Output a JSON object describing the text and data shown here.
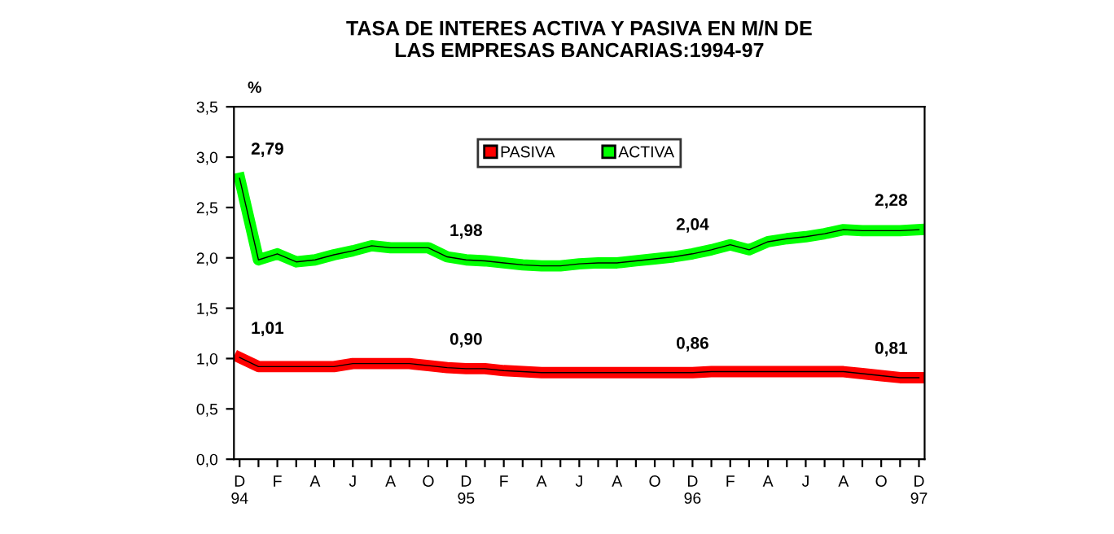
{
  "chart_data": {
    "type": "line",
    "title": "TASA DE INTERES ACTIVA Y PASIVA EN M/N DE\nLAS EMPRESAS BANCARIAS:1994-97",
    "ylabel": "%",
    "categories": [
      "D\n94",
      null,
      "F",
      null,
      "A",
      null,
      "J",
      null,
      "A",
      null,
      "O",
      null,
      "D\n95",
      null,
      "F",
      null,
      "A",
      null,
      "J",
      null,
      "A",
      null,
      "O",
      null,
      "D\n96",
      null,
      "F",
      null,
      "A",
      null,
      "J",
      null,
      "A",
      null,
      "O",
      null,
      "D\n97"
    ],
    "series": [
      {
        "name": "PASIVA",
        "color": "#ff0000",
        "values": [
          1.01,
          0.92,
          0.92,
          0.92,
          0.92,
          0.92,
          0.95,
          0.95,
          0.95,
          0.95,
          0.93,
          0.91,
          0.9,
          0.9,
          0.88,
          0.87,
          0.86,
          0.86,
          0.86,
          0.86,
          0.86,
          0.86,
          0.86,
          0.86,
          0.86,
          0.87,
          0.87,
          0.87,
          0.87,
          0.87,
          0.87,
          0.87,
          0.87,
          0.85,
          0.83,
          0.81,
          0.81
        ],
        "value_labels": [
          "1,01",
          null,
          null,
          null,
          null,
          null,
          null,
          null,
          null,
          null,
          null,
          null,
          "0,90",
          null,
          null,
          null,
          null,
          null,
          null,
          null,
          null,
          null,
          null,
          null,
          "0,86",
          null,
          null,
          null,
          null,
          null,
          null,
          null,
          null,
          null,
          null,
          null,
          "0,81"
        ]
      },
      {
        "name": "ACTIVA",
        "color": "#00ff00",
        "values": [
          2.79,
          1.98,
          2.04,
          1.96,
          1.98,
          2.03,
          2.07,
          2.12,
          2.1,
          2.1,
          2.1,
          2.01,
          1.98,
          1.97,
          1.95,
          1.93,
          1.92,
          1.92,
          1.94,
          1.95,
          1.95,
          1.97,
          1.99,
          2.01,
          2.04,
          2.08,
          2.13,
          2.08,
          2.16,
          2.19,
          2.21,
          2.24,
          2.28,
          2.27,
          2.27,
          2.27,
          2.28
        ],
        "value_labels": [
          "2,79",
          null,
          null,
          null,
          null,
          null,
          null,
          null,
          null,
          null,
          null,
          null,
          "1,98",
          null,
          null,
          null,
          null,
          null,
          null,
          null,
          null,
          null,
          null,
          null,
          "2,04",
          null,
          null,
          null,
          null,
          null,
          null,
          null,
          null,
          null,
          null,
          null,
          "2,28"
        ]
      }
    ],
    "ylim": [
      0,
      3.5
    ],
    "yticks": [
      {
        "value": 0,
        "label": "0,0"
      },
      {
        "value": 0.5,
        "label": "0,5"
      },
      {
        "value": 1.0,
        "label": "1,0"
      },
      {
        "value": 1.5,
        "label": "1,5"
      },
      {
        "value": 2.0,
        "label": "2,0"
      },
      {
        "value": 2.5,
        "label": "2,5"
      },
      {
        "value": 3.0,
        "label": "3,0"
      },
      {
        "value": 3.5,
        "label": "3,5"
      }
    ],
    "grid": false,
    "legend": "top",
    "line_style": "solid"
  }
}
